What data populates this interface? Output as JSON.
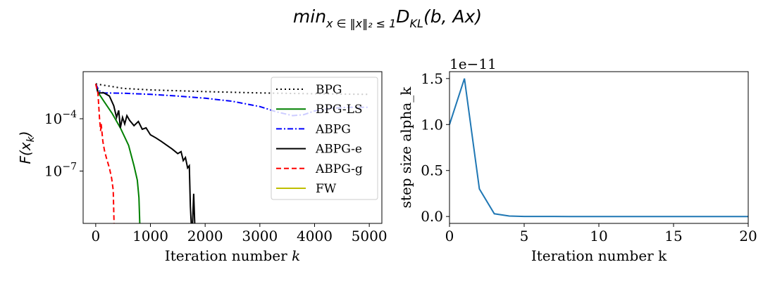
{
  "suptitle": {
    "base": "min",
    "sub": "x ∈ ‖x‖₂ ≤ 1",
    "main": "D",
    "sub2": "KL",
    "tail": "(b, Ax)"
  },
  "chart_data": [
    {
      "type": "line",
      "xlabel_text": "Iteration number ",
      "xlabel_var": "k",
      "ylabel_base": "F(x",
      "ylabel_sub": "k",
      "ylabel_tail": ")",
      "yscale": "log",
      "xlim": [
        -230,
        5230
      ],
      "ylim": [
        1e-10,
        0.05
      ],
      "xticks": [
        0,
        1000,
        2000,
        3000,
        4000,
        5000
      ],
      "xtick_labels": [
        "0",
        "1000",
        "2000",
        "3000",
        "4000",
        "5000"
      ],
      "yticks": [
        0.0001,
        1e-07
      ],
      "ytick_labels": [
        {
          "base": "10",
          "exp": "−4"
        },
        {
          "base": "10",
          "exp": "−7"
        }
      ],
      "legend_position": "top-right",
      "series": [
        {
          "name": "BPG",
          "color": "#000000",
          "dash": "dotted",
          "points": [
            [
              0,
              0.01
            ],
            [
              500,
              0.0055
            ],
            [
              1000,
              0.0045
            ],
            [
              2000,
              0.0036
            ],
            [
              3000,
              0.003
            ],
            [
              4000,
              0.0027
            ],
            [
              5000,
              0.0025
            ]
          ]
        },
        {
          "name": "BPG-LS",
          "color": "#008000",
          "dash": "solid",
          "points": [
            [
              0,
              0.01
            ],
            [
              50,
              0.003
            ],
            [
              150,
              0.001
            ],
            [
              300,
              0.0002
            ],
            [
              450,
              3e-05
            ],
            [
              600,
              3e-06
            ],
            [
              700,
              2e-07
            ],
            [
              760,
              3e-08
            ],
            [
              790,
              3e-09
            ],
            [
              805,
              1e-10
            ]
          ]
        },
        {
          "name": "ABPG",
          "color": "#0000ff",
          "dash": "dashdot",
          "points": [
            [
              0,
              0.01
            ],
            [
              60,
              0.004
            ],
            [
              150,
              0.003
            ],
            [
              500,
              0.0029
            ],
            [
              1000,
              0.0025
            ],
            [
              1500,
              0.002
            ],
            [
              2000,
              0.0015
            ],
            [
              2500,
              0.001
            ],
            [
              3000,
              0.0005
            ],
            [
              3300,
              0.00025
            ],
            [
              3600,
              0.00015
            ],
            [
              3800,
              0.00017
            ],
            [
              4000,
              0.00028
            ],
            [
              4300,
              0.0004
            ],
            [
              4600,
              0.00045
            ],
            [
              5000,
              0.00045
            ]
          ]
        },
        {
          "name": "ABPG-e",
          "color": "#000000",
          "dash": "solid",
          "points": [
            [
              0,
              0.01
            ],
            [
              40,
              0.003
            ],
            [
              150,
              0.003
            ],
            [
              250,
              0.002
            ],
            [
              330,
              0.00055
            ],
            [
              380,
              0.00012
            ],
            [
              420,
              0.0003
            ],
            [
              450,
              3e-05
            ],
            [
              490,
              0.00012
            ],
            [
              530,
              5e-05
            ],
            [
              570,
              0.00015
            ],
            [
              620,
              8e-05
            ],
            [
              700,
              4e-05
            ],
            [
              780,
              7e-05
            ],
            [
              850,
              2.5e-05
            ],
            [
              920,
              3e-05
            ],
            [
              1000,
              1.2e-05
            ],
            [
              1100,
              8e-06
            ],
            [
              1200,
              5e-06
            ],
            [
              1300,
              3e-06
            ],
            [
              1400,
              1.8e-06
            ],
            [
              1500,
              1e-06
            ],
            [
              1560,
              1.3e-06
            ],
            [
              1600,
              4e-07
            ],
            [
              1640,
              6e-07
            ],
            [
              1680,
              1.5e-07
            ],
            [
              1710,
              2e-07
            ],
            [
              1730,
              1e-09
            ],
            [
              1745,
              1e-10
            ],
            [
              1770,
              1e-10
            ],
            [
              1790,
              5e-09
            ],
            [
              1810,
              1e-10
            ]
          ]
        },
        {
          "name": "ABPG-g",
          "color": "#ff0000",
          "dash": "dashed",
          "points": [
            [
              0,
              0.01
            ],
            [
              40,
              0.003
            ],
            [
              70,
              0.0001
            ],
            [
              90,
              2e-05
            ],
            [
              100,
              5e-05
            ],
            [
              130,
              5e-06
            ],
            [
              160,
              1.5e-06
            ],
            [
              200,
              5e-07
            ],
            [
              250,
              1.5e-07
            ],
            [
              290,
              4e-08
            ],
            [
              320,
              8e-09
            ],
            [
              335,
              1e-10
            ]
          ]
        },
        {
          "name": "FW",
          "color": "#bfbf00",
          "dash": "solid",
          "points": []
        }
      ]
    },
    {
      "type": "line",
      "xlabel": "Iteration number k",
      "ylabel": "step size alpha_k",
      "offset_text": "1e−11",
      "xlim": [
        0,
        20
      ],
      "ylim": [
        -0.075,
        1.575
      ],
      "xticks": [
        0,
        5,
        10,
        15,
        20
      ],
      "xtick_labels": [
        "0",
        "5",
        "10",
        "15",
        "20"
      ],
      "yticks": [
        0.0,
        0.5,
        1.0,
        1.5
      ],
      "ytick_labels": [
        "0.0",
        "0.5",
        "1.0",
        "1.5"
      ],
      "series": [
        {
          "color": "#1f77b4",
          "x": [
            0,
            1,
            2,
            3,
            4,
            5,
            6,
            7,
            8,
            9,
            10,
            11,
            12,
            13,
            14,
            15,
            16,
            17,
            18,
            19,
            20
          ],
          "values": [
            1.0,
            1.5,
            0.3,
            0.03,
            0.005,
            0.001,
            0.0005,
            0.0003,
            0.0002,
            0.0001,
            0.0001,
            0.0001,
            0.0001,
            0.0001,
            0.0001,
            0.0001,
            0.0001,
            0.0001,
            0.0001,
            0.0001,
            0.0001
          ]
        }
      ]
    }
  ]
}
